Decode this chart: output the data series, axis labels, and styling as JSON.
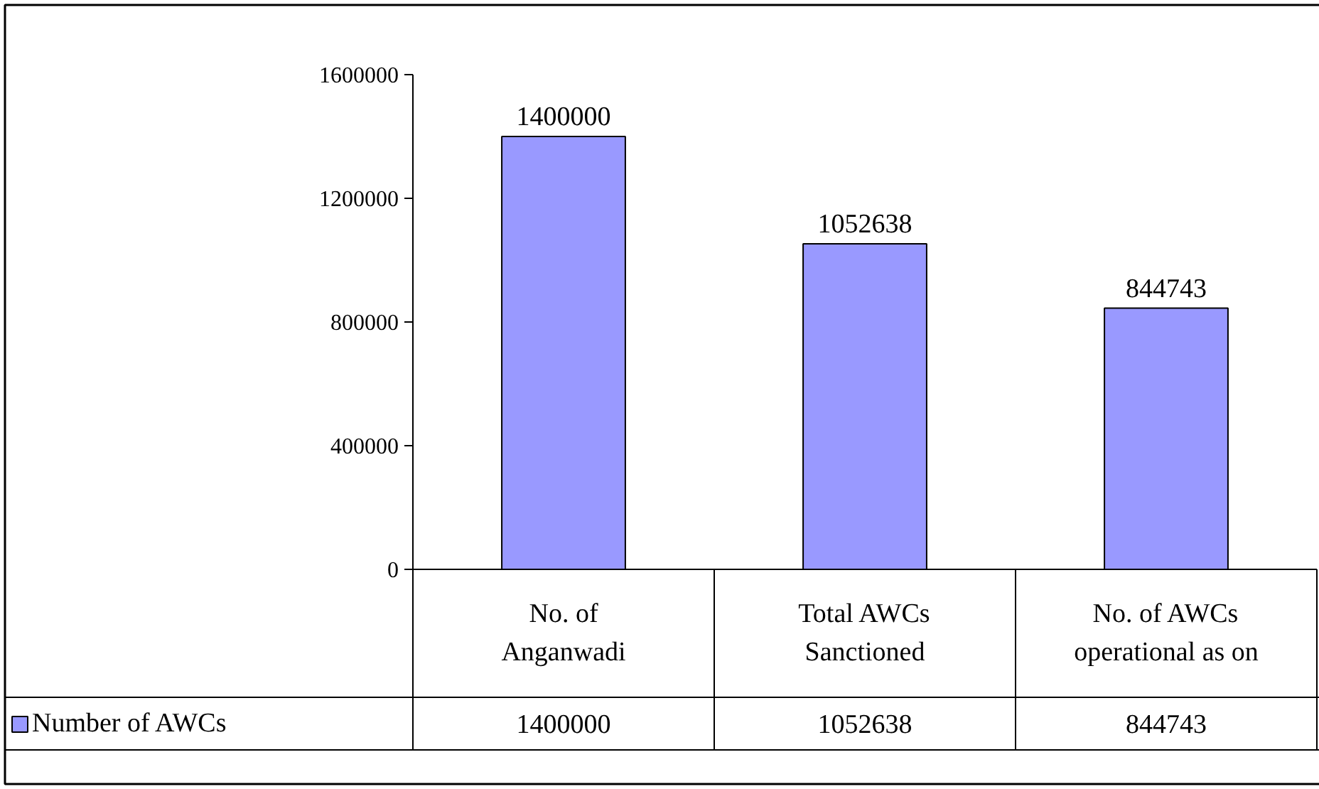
{
  "chart_data": {
    "type": "bar",
    "categories": [
      "No. of\nAnganwadi",
      "Total AWCs\nSanctioned",
      "No. of AWCs\noperational as on"
    ],
    "series": [
      {
        "name": "Number of AWCs",
        "color": "#9999ff",
        "values": [
          1400000,
          1052638,
          844743
        ]
      }
    ],
    "ylim": [
      0,
      1600000
    ],
    "yticks": [
      0,
      400000,
      800000,
      1200000,
      1600000
    ],
    "annotations": [
      {
        "text": "1400000",
        "x": "No. of\nAnganwadi",
        "y": 1400000
      },
      {
        "text": "1052638",
        "x": "Total AWCs\nSanctioned",
        "y": 1052638
      },
      {
        "text": "844743",
        "x": "No. of AWCs\noperational as on",
        "y": 844743
      }
    ],
    "data_labels": true,
    "grid": false,
    "legend": "bottom"
  }
}
